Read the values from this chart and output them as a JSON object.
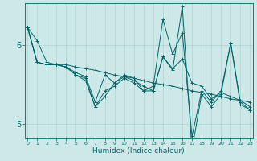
{
  "xlabel": "Humidex (Indice chaleur)",
  "bg_color": "#cce8e8",
  "line_color": "#006666",
  "grid_color": "#aacccc",
  "xmin": 0,
  "xmax": 23,
  "ymin": 4.82,
  "ymax": 6.52,
  "yticks": [
    5,
    6
  ],
  "lines": [
    [
      6.22,
      6.05,
      5.78,
      5.75,
      5.75,
      5.72,
      5.7,
      5.68,
      5.65,
      5.62,
      5.6,
      5.58,
      5.55,
      5.52,
      5.5,
      5.48,
      5.45,
      5.42,
      5.4,
      5.38,
      5.35,
      5.32,
      5.3,
      5.28
    ],
    [
      6.22,
      5.78,
      5.75,
      5.75,
      5.72,
      5.65,
      5.6,
      5.28,
      5.62,
      5.52,
      5.6,
      5.55,
      5.48,
      5.42,
      5.85,
      5.7,
      5.82,
      5.52,
      5.48,
      5.32,
      5.4,
      5.35,
      5.3,
      5.22
    ],
    [
      6.22,
      5.78,
      5.75,
      5.75,
      5.72,
      5.62,
      5.58,
      5.22,
      5.35,
      5.52,
      5.62,
      5.58,
      5.42,
      5.48,
      6.32,
      5.88,
      6.15,
      4.85,
      5.42,
      5.28,
      5.42,
      6.02,
      5.28,
      5.18
    ],
    [
      6.22,
      5.78,
      5.75,
      5.75,
      5.72,
      5.62,
      5.55,
      5.22,
      5.42,
      5.48,
      5.58,
      5.52,
      5.42,
      5.42,
      5.85,
      5.68,
      6.48,
      4.68,
      5.38,
      5.22,
      5.38,
      6.02,
      5.25,
      5.18
    ]
  ]
}
